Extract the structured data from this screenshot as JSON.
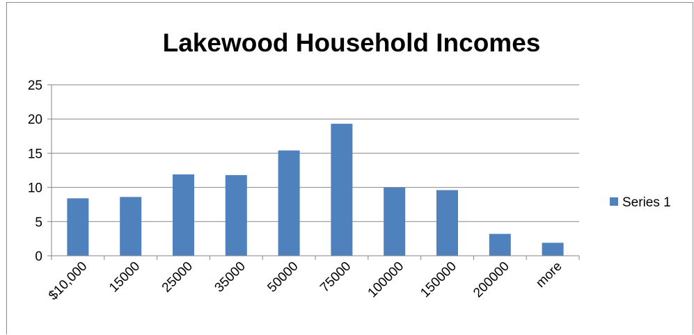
{
  "chart_data": {
    "type": "bar",
    "title": "Lakewood Household Incomes",
    "xlabel": "",
    "ylabel": "",
    "categories": [
      "$10,000",
      "15000",
      "25000",
      "35000",
      "50000",
      "75000",
      "100000",
      "150000",
      "200000",
      "more"
    ],
    "series": [
      {
        "name": "Series 1",
        "values": [
          8.4,
          8.6,
          11.9,
          11.8,
          15.4,
          19.3,
          10.0,
          9.6,
          3.2,
          1.9
        ]
      }
    ],
    "ylim": [
      0,
      25
    ],
    "yticks": [
      "0",
      "5",
      "10",
      "15",
      "20",
      "25"
    ],
    "grid": true,
    "legend": "right",
    "colors": {
      "bar": "#4f81bd",
      "grid": "#868686",
      "axis": "#868686"
    }
  }
}
